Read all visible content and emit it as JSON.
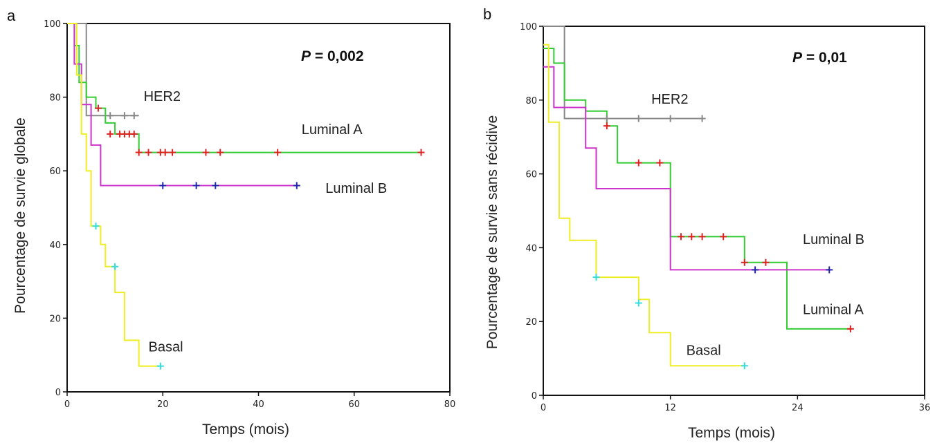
{
  "chart_data": [
    {
      "type": "line",
      "panel": "a",
      "xlabel": "Temps (mois)",
      "ylabel": "Pourcentage de survie globale",
      "p_prefix": "P",
      "p_value": " = 0,002",
      "xlim": [
        0,
        80
      ],
      "ylim": [
        0,
        100
      ],
      "xticks": [
        0,
        20,
        40,
        60,
        80
      ],
      "yticks": [
        0,
        20,
        40,
        60,
        80,
        100
      ],
      "series": [
        {
          "name": "HER2",
          "color": "#888888",
          "steps": [
            [
              0,
              100
            ],
            [
              4,
              100
            ],
            [
              4,
              75
            ],
            [
              15,
              75
            ]
          ],
          "censors": [
            [
              9,
              75
            ],
            [
              12,
              75
            ],
            [
              14,
              75
            ]
          ]
        },
        {
          "name": "Luminal A",
          "color": "#33cc33",
          "steps": [
            [
              0,
              100
            ],
            [
              1.5,
              100
            ],
            [
              1.5,
              94
            ],
            [
              2.5,
              94
            ],
            [
              2.5,
              84
            ],
            [
              4,
              84
            ],
            [
              4,
              80
            ],
            [
              6,
              80
            ],
            [
              6,
              77
            ],
            [
              8,
              77
            ],
            [
              8,
              73
            ],
            [
              10,
              73
            ],
            [
              10,
              70
            ],
            [
              15,
              70
            ],
            [
              15,
              65
            ],
            [
              74,
              65
            ]
          ],
          "censors": [
            [
              6.5,
              77
            ],
            [
              9,
              70
            ],
            [
              11,
              70
            ],
            [
              12,
              70
            ],
            [
              13,
              70
            ],
            [
              14,
              70
            ],
            [
              15,
              65
            ],
            [
              17,
              65
            ],
            [
              19.5,
              65
            ],
            [
              20.5,
              65
            ],
            [
              22,
              65
            ],
            [
              29,
              65
            ],
            [
              32,
              65
            ],
            [
              44,
              65
            ],
            [
              74,
              65
            ]
          ]
        },
        {
          "name": "Luminal B",
          "color": "#cc33cc",
          "steps": [
            [
              0,
              100
            ],
            [
              1.5,
              100
            ],
            [
              1.5,
              89
            ],
            [
              3,
              89
            ],
            [
              3,
              78
            ],
            [
              5,
              78
            ],
            [
              5,
              67
            ],
            [
              7,
              67
            ],
            [
              7,
              56
            ],
            [
              48,
              56
            ]
          ],
          "censors": [
            [
              20,
              56
            ],
            [
              27,
              56
            ],
            [
              31,
              56
            ],
            [
              48,
              56
            ]
          ]
        },
        {
          "name": "Basal",
          "color": "#eeee22",
          "steps": [
            [
              0,
              100
            ],
            [
              2,
              100
            ],
            [
              2,
              86
            ],
            [
              3,
              86
            ],
            [
              3,
              70
            ],
            [
              4,
              70
            ],
            [
              4,
              60
            ],
            [
              5,
              60
            ],
            [
              5,
              45
            ],
            [
              7,
              45
            ],
            [
              7,
              40
            ],
            [
              8,
              40
            ],
            [
              8,
              34
            ],
            [
              10,
              34
            ],
            [
              10,
              27
            ],
            [
              12,
              27
            ],
            [
              12,
              14
            ],
            [
              15,
              14
            ],
            [
              15,
              7
            ],
            [
              19.5,
              7
            ]
          ],
          "censors": [
            [
              6,
              45
            ],
            [
              10,
              34
            ],
            [
              19.5,
              7
            ]
          ]
        }
      ],
      "labels": [
        {
          "text": "HER2",
          "x": 16,
          "y": 79
        },
        {
          "text": "Luminal A",
          "x": 49,
          "y": 70
        },
        {
          "text": "Luminal B",
          "x": 54,
          "y": 54
        },
        {
          "text": "Basal",
          "x": 17,
          "y": 11
        }
      ]
    },
    {
      "type": "line",
      "panel": "b",
      "xlabel": "Temps (mois)",
      "ylabel": "Pourcentage de survie sans récidive",
      "p_prefix": "P",
      "p_value": " = 0,01",
      "xlim": [
        0,
        36
      ],
      "ylim": [
        0,
        100
      ],
      "xticks": [
        0,
        12,
        24,
        36
      ],
      "yticks": [
        0,
        20,
        40,
        60,
        80,
        100
      ],
      "series": [
        {
          "name": "HER2",
          "color": "#888888",
          "steps": [
            [
              0,
              100
            ],
            [
              2,
              100
            ],
            [
              2,
              75
            ],
            [
              15,
              75
            ]
          ],
          "censors": [
            [
              6,
              75
            ],
            [
              9,
              75
            ],
            [
              12,
              75
            ],
            [
              15,
              75
            ]
          ]
        },
        {
          "name": "Luminal A",
          "color": "#33cc33",
          "steps": [
            [
              0,
              94
            ],
            [
              1,
              94
            ],
            [
              1,
              90
            ],
            [
              2,
              90
            ],
            [
              2,
              80
            ],
            [
              4,
              80
            ],
            [
              4,
              77
            ],
            [
              6,
              77
            ],
            [
              6,
              73
            ],
            [
              7,
              73
            ],
            [
              7,
              63
            ],
            [
              12,
              63
            ],
            [
              12,
              43
            ],
            [
              19,
              43
            ],
            [
              19,
              36
            ],
            [
              23,
              36
            ],
            [
              23,
              18
            ],
            [
              29,
              18
            ]
          ],
          "censors": [
            [
              6,
              73
            ],
            [
              9,
              63
            ],
            [
              11,
              63
            ],
            [
              13,
              43
            ],
            [
              14,
              43
            ],
            [
              15,
              43
            ],
            [
              17,
              43
            ],
            [
              19,
              36
            ],
            [
              21,
              36
            ],
            [
              29,
              18
            ]
          ]
        },
        {
          "name": "Luminal B",
          "color": "#cc33cc",
          "steps": [
            [
              0,
              89
            ],
            [
              1,
              89
            ],
            [
              1,
              78
            ],
            [
              4,
              78
            ],
            [
              4,
              67
            ],
            [
              5,
              67
            ],
            [
              5,
              56
            ],
            [
              12,
              56
            ],
            [
              12,
              34
            ],
            [
              27,
              34
            ]
          ],
          "censors": [
            [
              20,
              34
            ],
            [
              27,
              34
            ]
          ]
        },
        {
          "name": "Basal",
          "color": "#eeee22",
          "steps": [
            [
              0,
              95
            ],
            [
              0.5,
              95
            ],
            [
              0.5,
              74
            ],
            [
              1.5,
              74
            ],
            [
              1.5,
              48
            ],
            [
              2.5,
              48
            ],
            [
              2.5,
              42
            ],
            [
              5,
              42
            ],
            [
              5,
              32
            ],
            [
              9,
              32
            ],
            [
              9,
              26
            ],
            [
              10,
              26
            ],
            [
              10,
              17
            ],
            [
              12,
              17
            ],
            [
              12,
              8
            ],
            [
              19,
              8
            ]
          ],
          "censors": [
            [
              5,
              32
            ],
            [
              9,
              25
            ],
            [
              19,
              8
            ]
          ]
        }
      ],
      "labels": [
        {
          "text": "HER2",
          "x": 10.2,
          "y": 79
        },
        {
          "text": "Luminal B",
          "x": 24.5,
          "y": 41
        },
        {
          "text": "Luminal A",
          "x": 24.5,
          "y": 22
        },
        {
          "text": "Basal",
          "x": 13.5,
          "y": 11
        }
      ]
    }
  ]
}
